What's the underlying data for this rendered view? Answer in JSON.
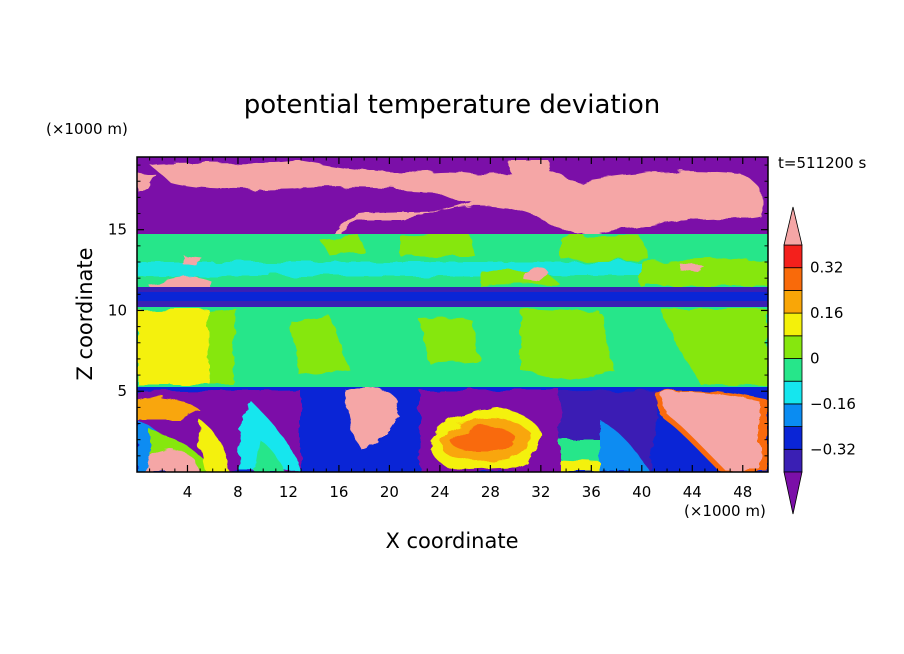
{
  "chart_data": {
    "type": "heatmap",
    "title": "potential temperature deviation",
    "xlabel": "X coordinate",
    "ylabel": "Z coordinate",
    "x_unit": "(×1000 m)",
    "y_unit": "(×1000 m)",
    "time_label": "t=511200 s",
    "xlim": [
      0,
      50
    ],
    "ylim": [
      0,
      19.5
    ],
    "x_ticks": [
      4,
      8,
      12,
      16,
      20,
      24,
      28,
      32,
      36,
      40,
      44,
      48
    ],
    "y_ticks": [
      5,
      10,
      15
    ],
    "colorbar": {
      "levels": [
        -0.4,
        -0.32,
        -0.24,
        -0.16,
        -0.08,
        0,
        0.08,
        0.16,
        0.24,
        0.32,
        0.4
      ],
      "tick_labels": [
        "0.32",
        "0.16",
        "0",
        "−0.16",
        "−0.32"
      ],
      "tick_values": [
        0.32,
        0.16,
        0,
        -0.16,
        -0.32
      ],
      "colors": [
        "#7b0fa8",
        "#3a1fb4",
        "#0a25d6",
        "#0a8cf2",
        "#15e6ee",
        "#26e68a",
        "#86e70e",
        "#f4f10a",
        "#f9a607",
        "#f96a0a",
        "#f4201c",
        "#f5a6a6"
      ],
      "extend": "both"
    },
    "bands": [
      {
        "z_range": [
          17.5,
          19.5
        ],
        "dominant_value": "below -0.4, with patches above 0.4"
      },
      {
        "z_range": [
          15,
          17.5
        ],
        "dominant_value": "below -0.4, with patches above 0.4"
      },
      {
        "z_range": [
          11.8,
          15
        ],
        "dominant_value": "0 to 0.08"
      },
      {
        "z_range": [
          10.3,
          11.8
        ],
        "dominant_value": "below -0.32"
      },
      {
        "z_range": [
          5.3,
          10.3
        ],
        "dominant_value": "-0.08 to 0.08"
      },
      {
        "z_range": [
          0,
          5.3
        ],
        "dominant_value": "mixed, from below -0.4 to above 0.4"
      }
    ]
  }
}
